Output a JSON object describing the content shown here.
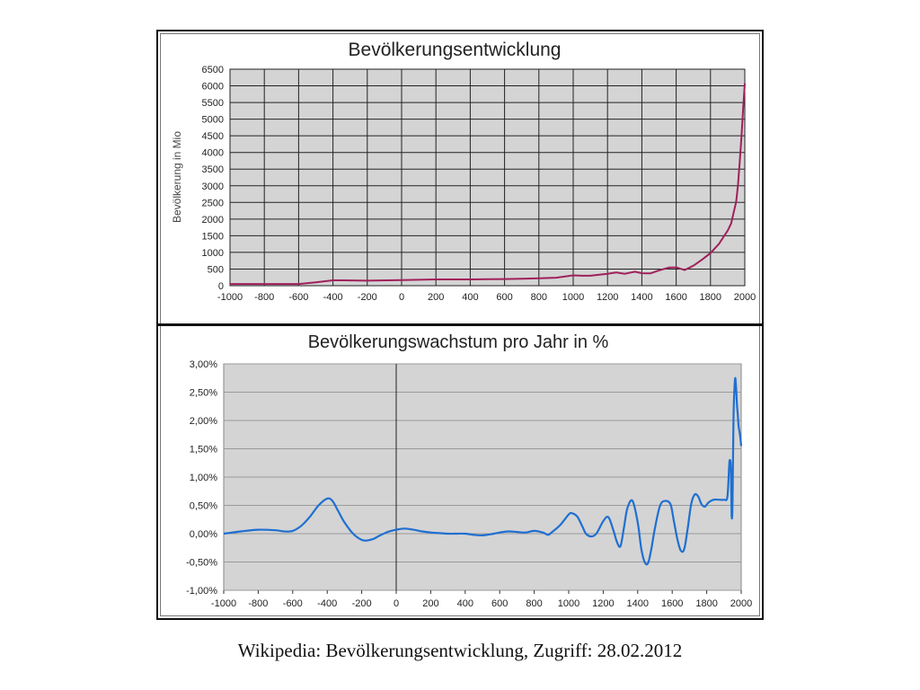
{
  "caption": "Wikipedia: Bevölkerungsentwicklung, Zugriff: 28.02.2012",
  "chart_data": [
    {
      "type": "line",
      "title": "Bevölkerungsentwicklung",
      "ylabel": "Bevölkerung in Mio",
      "xlabel": "",
      "xlim": [
        -1000,
        2000
      ],
      "ylim": [
        0,
        6500
      ],
      "x_ticks": [
        -1000,
        -800,
        -600,
        -400,
        -200,
        0,
        200,
        400,
        600,
        800,
        1000,
        1200,
        1400,
        1600,
        1800,
        2000
      ],
      "y_ticks": [
        0,
        500,
        1000,
        1500,
        2000,
        2500,
        3000,
        3500,
        4000,
        4500,
        5000,
        5500,
        6000,
        6500
      ],
      "grid": true,
      "line_color": "#a0205a",
      "plot_bg": "#d4d4d4",
      "series": [
        {
          "x": [
            -1000,
            -800,
            -600,
            -500,
            -400,
            -350,
            -200,
            0,
            200,
            400,
            500,
            600,
            700,
            800,
            900,
            1000,
            1050,
            1100,
            1200,
            1250,
            1300,
            1340,
            1360,
            1400,
            1450,
            1500,
            1560,
            1600,
            1650,
            1700,
            1750,
            1800,
            1850,
            1880,
            1900,
            1920,
            1940,
            1950,
            1960,
            1970,
            1980,
            1990,
            2000
          ],
          "y": [
            50,
            50,
            50,
            100,
            162,
            162,
            150,
            170,
            190,
            190,
            195,
            200,
            210,
            220,
            240,
            310,
            300,
            300,
            360,
            400,
            360,
            400,
            420,
            375,
            370,
            460,
            545,
            550,
            470,
            600,
            780,
            980,
            1260,
            1500,
            1650,
            1860,
            2300,
            2520,
            3020,
            3700,
            4430,
            5300,
            6070
          ]
        }
      ]
    },
    {
      "type": "line",
      "title": "Bevölkerungswachstum pro Jahr in %",
      "xlabel": "",
      "ylabel": "",
      "xlim": [
        -1000,
        2000
      ],
      "ylim": [
        -1.0,
        3.0
      ],
      "x_ticks": [
        -1000,
        -800,
        -600,
        -400,
        -200,
        0,
        200,
        400,
        600,
        800,
        1000,
        1200,
        1400,
        1600,
        1800,
        2000
      ],
      "y_tick_values": [
        3.0,
        2.5,
        2.0,
        1.5,
        1.0,
        0.5,
        0.0,
        -0.5,
        -1.0
      ],
      "y_tick_labels": [
        "3,00%",
        "2,50%",
        "2,00%",
        "1,50%",
        "1,00%",
        "0,50%",
        "0,00%",
        "-0,50%",
        "-1,00%"
      ],
      "grid": "horizontal",
      "line_color": "#1f6fd1",
      "plot_bg": "#d4d4d4",
      "series": [
        {
          "x": [
            -1000,
            -900,
            -800,
            -700,
            -650,
            -600,
            -550,
            -500,
            -450,
            -400,
            -370,
            -340,
            -300,
            -250,
            -200,
            -170,
            -130,
            -100,
            -50,
            0,
            50,
            100,
            150,
            200,
            250,
            300,
            350,
            400,
            450,
            500,
            550,
            600,
            650,
            700,
            750,
            800,
            850,
            880,
            900,
            950,
            1000,
            1020,
            1050,
            1080,
            1100,
            1130,
            1160,
            1200,
            1230,
            1260,
            1280,
            1300,
            1320,
            1340,
            1370,
            1400,
            1420,
            1440,
            1460,
            1480,
            1500,
            1530,
            1560,
            1590,
            1610,
            1630,
            1650,
            1670,
            1690,
            1710,
            1730,
            1750,
            1770,
            1790,
            1810,
            1840,
            1870,
            1900,
            1920,
            1930,
            1935,
            1940,
            1945,
            1950,
            1955,
            1960,
            1965,
            1970,
            1975,
            1980,
            1985,
            1990,
            1995,
            2000
          ],
          "y": [
            0.0,
            0.04,
            0.07,
            0.06,
            0.04,
            0.05,
            0.14,
            0.3,
            0.5,
            0.62,
            0.58,
            0.42,
            0.2,
            0.0,
            -0.11,
            -0.12,
            -0.09,
            -0.04,
            0.03,
            0.07,
            0.09,
            0.07,
            0.04,
            0.02,
            0.01,
            0.0,
            0.0,
            0.0,
            -0.02,
            -0.03,
            -0.01,
            0.02,
            0.04,
            0.03,
            0.02,
            0.05,
            0.02,
            -0.02,
            0.02,
            0.15,
            0.34,
            0.36,
            0.3,
            0.12,
            0.0,
            -0.05,
            0.0,
            0.22,
            0.29,
            0.05,
            -0.15,
            -0.22,
            0.1,
            0.45,
            0.58,
            0.2,
            -0.25,
            -0.5,
            -0.52,
            -0.25,
            0.1,
            0.5,
            0.58,
            0.52,
            0.22,
            -0.1,
            -0.3,
            -0.27,
            0.1,
            0.52,
            0.69,
            0.66,
            0.52,
            0.48,
            0.55,
            0.6,
            0.6,
            0.6,
            0.65,
            1.2,
            1.3,
            1.15,
            0.3,
            0.6,
            2.0,
            2.5,
            2.75,
            2.6,
            2.3,
            2.1,
            1.9,
            1.8,
            1.7,
            1.55
          ]
        }
      ]
    }
  ]
}
